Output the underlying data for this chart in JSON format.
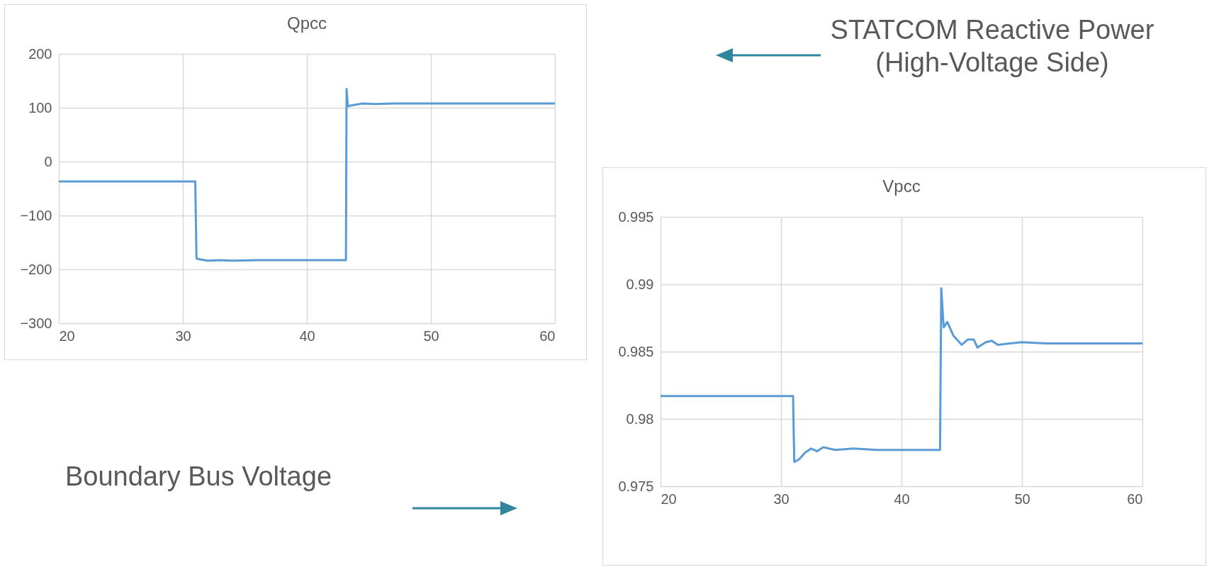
{
  "chart_data": [
    {
      "type": "line",
      "title": "Qpcc",
      "annotations": [
        "STATCOM Reactive Power (High-Voltage Side)"
      ],
      "x": [
        20,
        31,
        31.1,
        31.5,
        32,
        33,
        34,
        36,
        40,
        43.15,
        43.2,
        43.3,
        43.5,
        44,
        44.5,
        45.5,
        47,
        50,
        55,
        60
      ],
      "series": [
        {
          "color": "#5b9bd5",
          "values": [
            -37,
            -37,
            -180,
            -182,
            -184,
            -183,
            -184,
            -183,
            -183,
            -183,
            135,
            103,
            104,
            106,
            108,
            107,
            108,
            108,
            108,
            108
          ]
        }
      ],
      "xlim": [
        20,
        60
      ],
      "xticks": [
        20,
        30,
        40,
        50,
        60
      ],
      "ylim": [
        -300,
        200
      ],
      "yticks": [
        -300,
        -200,
        -100,
        0,
        100,
        200
      ],
      "grid": true
    },
    {
      "type": "line",
      "title": "Vpcc",
      "annotations": [
        "Boundary Bus Voltage"
      ],
      "x": [
        20,
        31,
        31.1,
        31.5,
        32,
        32.5,
        33,
        33.5,
        34.5,
        36,
        38,
        40,
        43.2,
        43.3,
        43.5,
        43.8,
        44.3,
        45,
        45.5,
        46,
        46.3,
        47,
        47.5,
        48,
        49,
        50,
        52,
        55,
        60
      ],
      "series": [
        {
          "color": "#5b9bd5",
          "values": [
            0.9817,
            0.9817,
            0.9768,
            0.977,
            0.9775,
            0.9778,
            0.9776,
            0.9779,
            0.9777,
            0.9778,
            0.9777,
            0.9777,
            0.9777,
            0.9897,
            0.9868,
            0.9872,
            0.9862,
            0.9855,
            0.9859,
            0.9859,
            0.9853,
            0.9857,
            0.9858,
            0.9855,
            0.9856,
            0.9857,
            0.9856,
            0.9856,
            0.9856
          ]
        }
      ],
      "xlim": [
        20,
        60
      ],
      "xticks": [
        20,
        30,
        40,
        50,
        60
      ],
      "ylim": [
        0.975,
        0.995
      ],
      "yticks": [
        0.975,
        0.98,
        0.985,
        0.99,
        0.995
      ],
      "grid": true
    }
  ]
}
